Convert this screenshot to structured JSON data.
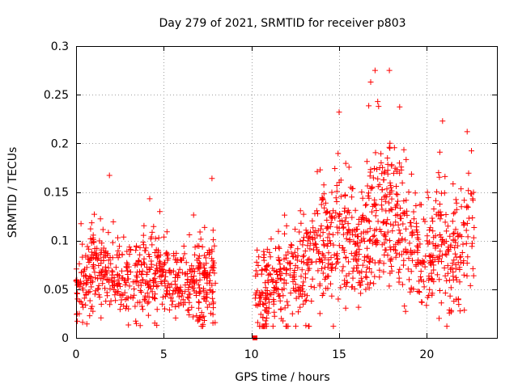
{
  "chart_data": {
    "type": "scatter",
    "title": "Day 279 of 2021, SRMTID for receiver p803",
    "xlabel": "GPS time / hours",
    "ylabel": "SRMTID / TECUs",
    "xlim": [
      0,
      24
    ],
    "ylim": [
      0,
      0.3
    ],
    "x_ticks": [
      0,
      5,
      10,
      15,
      20
    ],
    "x_tick_labels": [
      "0",
      "5",
      "10",
      "15",
      "20"
    ],
    "y_ticks": [
      0,
      0.05,
      0.1,
      0.15,
      0.2,
      0.25,
      0.3
    ],
    "y_tick_labels": [
      "0",
      "0.05",
      "0.1",
      "0.15",
      "0.2",
      "0.25",
      "0.3"
    ],
    "grid": true,
    "marker": "plus",
    "color": "#ff0000",
    "series": [
      {
        "name": "SRMTID",
        "segments": [
          {
            "x_start": 0.0,
            "x_end": 7.95,
            "base_points": [
              [
                0.0,
                0.05
              ],
              [
                1.0,
                0.07
              ],
              [
                2.0,
                0.07
              ],
              [
                3.0,
                0.055
              ],
              [
                4.0,
                0.065
              ],
              [
                5.0,
                0.06
              ],
              [
                6.0,
                0.055
              ],
              [
                7.0,
                0.06
              ],
              [
                7.95,
                0.06
              ]
            ],
            "spread": 0.022,
            "outlier_max": 0.168,
            "count": 620
          },
          {
            "x_start": 10.2,
            "x_end": 22.7,
            "base_points": [
              [
                10.2,
                0.04
              ],
              [
                11.0,
                0.05
              ],
              [
                12.0,
                0.055
              ],
              [
                13.0,
                0.065
              ],
              [
                14.0,
                0.1
              ],
              [
                15.0,
                0.11
              ],
              [
                16.0,
                0.085
              ],
              [
                17.0,
                0.12
              ],
              [
                18.0,
                0.13
              ],
              [
                19.0,
                0.1
              ],
              [
                20.0,
                0.075
              ],
              [
                21.0,
                0.095
              ],
              [
                22.0,
                0.085
              ],
              [
                22.7,
                0.1
              ]
            ],
            "spread": 0.03,
            "outlier_max": 0.275,
            "count": 980
          }
        ],
        "zero_points": [
          {
            "x": 10.2,
            "y": 0.0
          }
        ],
        "highlights": [
          {
            "x": 15.0,
            "y": 0.232
          },
          {
            "x": 16.8,
            "y": 0.263
          },
          {
            "x": 17.05,
            "y": 0.275
          },
          {
            "x": 17.2,
            "y": 0.243
          },
          {
            "x": 17.25,
            "y": 0.238
          },
          {
            "x": 17.9,
            "y": 0.2
          },
          {
            "x": 20.9,
            "y": 0.223
          },
          {
            "x": 22.3,
            "y": 0.212
          },
          {
            "x": 1.9,
            "y": 0.167
          },
          {
            "x": 7.75,
            "y": 0.164
          },
          {
            "x": 4.2,
            "y": 0.143
          },
          {
            "x": 20.7,
            "y": 0.02
          },
          {
            "x": 4.6,
            "y": 0.013
          }
        ]
      }
    ]
  }
}
